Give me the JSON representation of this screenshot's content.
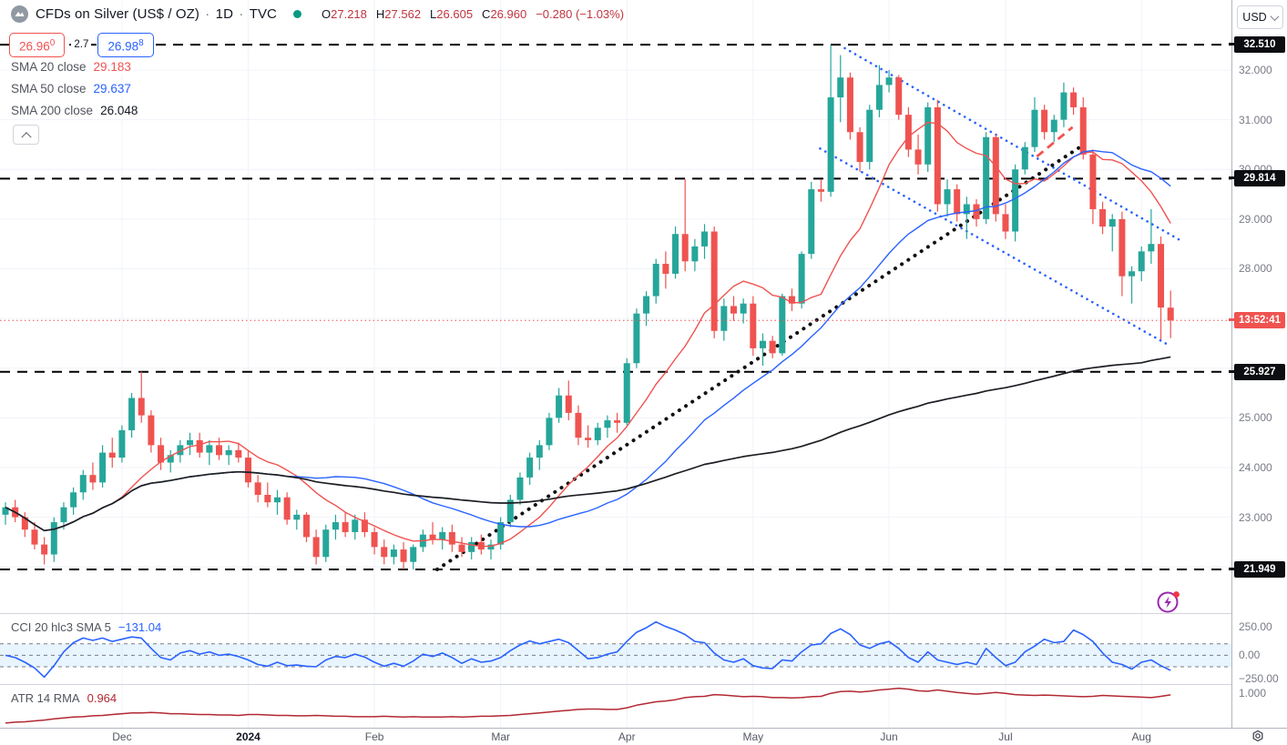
{
  "header": {
    "symbol": "CFDs on Silver (US$ / OZ)",
    "separator": "·",
    "timeframe": "1D",
    "exchange": "TVC",
    "ohlc": {
      "o_prefix": "O",
      "o": "27.218",
      "h_prefix": "H",
      "h": "27.562",
      "l_prefix": "L",
      "l": "26.605",
      "c_prefix": "C",
      "c": "26.960",
      "change": "−0.280 (−1.03%)"
    }
  },
  "quote": {
    "bid": "26.96",
    "bid_sup": "0",
    "spread": "2.7",
    "ask": "26.98",
    "ask_sup": "8"
  },
  "ma_legend": [
    {
      "label": "SMA 20 close",
      "value": "29.183",
      "color": "#ef5350"
    },
    {
      "label": "SMA 50 close",
      "value": "29.637",
      "color": "#2962ff"
    },
    {
      "label": "SMA 200 close",
      "value": "26.048",
      "color": "#131722"
    }
  ],
  "cci_pane": {
    "legend": "CCI 20 hlc3 SMA 5",
    "value": "−131.04",
    "value_color": "#2962ff",
    "ticks": [
      {
        "label": "250.00",
        "v": 250
      },
      {
        "label": "0.00",
        "v": 0
      },
      {
        "label": "−250.00",
        "v": -250
      }
    ]
  },
  "atr_pane": {
    "legend": "ATR 14 RMA",
    "value": "0.964",
    "value_color": "#b22833",
    "ticks": [
      {
        "label": "1.000",
        "v": 1.0
      }
    ]
  },
  "price_axis": {
    "currency": "USD",
    "ticks": [
      "32.000",
      "31.000",
      "30.000",
      "29.000",
      "28.000",
      "25.000",
      "24.000",
      "23.000"
    ],
    "level_badges": [
      {
        "text": "32.510",
        "p": 32.51
      },
      {
        "text": "29.814",
        "p": 29.814
      },
      {
        "text": "25.927",
        "p": 25.927
      },
      {
        "text": "21.949",
        "p": 21.949
      }
    ],
    "countdown": {
      "text": "13:52:41",
      "p": 26.96
    }
  },
  "time_axis": {
    "labels": [
      {
        "text": "Dec",
        "i": 12,
        "year": false
      },
      {
        "text": "2024",
        "i": 25,
        "year": true
      },
      {
        "text": "Feb",
        "i": 38,
        "year": false
      },
      {
        "text": "Mar",
        "i": 51,
        "year": false
      },
      {
        "text": "Apr",
        "i": 64,
        "year": false
      },
      {
        "text": "May",
        "i": 77,
        "year": false
      },
      {
        "text": "Jun",
        "i": 91,
        "year": false
      },
      {
        "text": "Jul",
        "i": 103,
        "year": false
      },
      {
        "text": "Aug",
        "i": 117,
        "year": false
      }
    ]
  },
  "chart_data": {
    "type": "candlestick",
    "title": "CFDs on Silver (US$ / OZ) 1D TVC",
    "x_range": "Nov 2023 – Aug 2024 (daily)",
    "main_ylim": [
      21.07,
      33.41
    ],
    "current_price": 26.96,
    "colors": {
      "up": "#26a69a",
      "down": "#ef5350",
      "sma20": "#ef5350",
      "sma50": "#2962ff",
      "sma200": "#1c1e23",
      "cci": "#2962ff",
      "atr": "#b22833",
      "grid": "#f0f3fa",
      "level": "#000000",
      "channel": "#2962ff"
    },
    "candles": [
      [
        23.05,
        23.3,
        22.85,
        23.2
      ],
      [
        23.2,
        23.35,
        22.9,
        23.0
      ],
      [
        23.0,
        23.1,
        22.6,
        22.75
      ],
      [
        22.75,
        22.9,
        22.35,
        22.45
      ],
      [
        22.45,
        22.6,
        22.05,
        22.25
      ],
      [
        22.25,
        23.0,
        22.1,
        22.9
      ],
      [
        22.9,
        23.3,
        22.75,
        23.2
      ],
      [
        23.2,
        23.6,
        23.05,
        23.5
      ],
      [
        23.5,
        23.95,
        23.35,
        23.85
      ],
      [
        23.85,
        24.1,
        23.55,
        23.7
      ],
      [
        23.7,
        24.45,
        23.6,
        24.3
      ],
      [
        24.3,
        24.6,
        24.0,
        24.2
      ],
      [
        24.2,
        24.85,
        24.1,
        24.75
      ],
      [
        24.75,
        25.5,
        24.6,
        25.4
      ],
      [
        25.4,
        25.93,
        24.9,
        25.05
      ],
      [
        25.05,
        25.15,
        24.3,
        24.45
      ],
      [
        24.45,
        24.6,
        23.95,
        24.1
      ],
      [
        24.1,
        24.35,
        23.9,
        24.25
      ],
      [
        24.25,
        24.55,
        24.1,
        24.45
      ],
      [
        24.45,
        24.7,
        24.25,
        24.55
      ],
      [
        24.55,
        24.7,
        24.2,
        24.3
      ],
      [
        24.3,
        24.55,
        24.05,
        24.45
      ],
      [
        24.45,
        24.6,
        24.15,
        24.25
      ],
      [
        24.25,
        24.45,
        24.05,
        24.35
      ],
      [
        24.35,
        24.5,
        24.1,
        24.2
      ],
      [
        24.2,
        24.35,
        23.6,
        23.7
      ],
      [
        23.7,
        23.85,
        23.3,
        23.45
      ],
      [
        23.45,
        23.7,
        23.2,
        23.3
      ],
      [
        23.3,
        23.55,
        23.05,
        23.4
      ],
      [
        23.4,
        23.5,
        22.85,
        22.95
      ],
      [
        22.95,
        23.15,
        22.75,
        23.05
      ],
      [
        23.05,
        23.1,
        22.5,
        22.6
      ],
      [
        22.6,
        22.75,
        22.05,
        22.2
      ],
      [
        22.2,
        22.85,
        22.1,
        22.75
      ],
      [
        22.75,
        23.05,
        22.55,
        22.9
      ],
      [
        22.9,
        23.1,
        22.6,
        22.7
      ],
      [
        22.7,
        23.05,
        22.55,
        22.95
      ],
      [
        22.95,
        23.1,
        22.6,
        22.7
      ],
      [
        22.7,
        22.8,
        22.25,
        22.4
      ],
      [
        22.4,
        22.55,
        22.05,
        22.2
      ],
      [
        22.2,
        22.45,
        22.05,
        22.35
      ],
      [
        22.35,
        22.5,
        21.95,
        22.1
      ],
      [
        22.1,
        22.45,
        21.95,
        22.4
      ],
      [
        22.4,
        22.75,
        22.3,
        22.65
      ],
      [
        22.65,
        22.9,
        22.45,
        22.55
      ],
      [
        22.55,
        22.8,
        22.35,
        22.7
      ],
      [
        22.7,
        22.85,
        22.3,
        22.45
      ],
      [
        22.45,
        22.6,
        22.2,
        22.3
      ],
      [
        22.3,
        22.6,
        22.15,
        22.5
      ],
      [
        22.5,
        22.65,
        22.25,
        22.35
      ],
      [
        22.35,
        22.55,
        22.15,
        22.45
      ],
      [
        22.45,
        23.0,
        22.35,
        22.9
      ],
      [
        22.9,
        23.45,
        22.8,
        23.35
      ],
      [
        23.35,
        23.9,
        23.25,
        23.8
      ],
      [
        23.8,
        24.3,
        23.65,
        24.2
      ],
      [
        24.2,
        24.55,
        23.95,
        24.45
      ],
      [
        24.45,
        25.1,
        24.35,
        25.0
      ],
      [
        25.0,
        25.6,
        24.9,
        25.45
      ],
      [
        25.45,
        25.75,
        24.95,
        25.1
      ],
      [
        25.1,
        25.25,
        24.45,
        24.6
      ],
      [
        24.6,
        24.85,
        24.4,
        24.55
      ],
      [
        24.55,
        24.9,
        24.45,
        24.8
      ],
      [
        24.8,
        25.05,
        24.6,
        24.95
      ],
      [
        24.95,
        25.1,
        24.7,
        24.9
      ],
      [
        24.9,
        26.2,
        24.85,
        26.1
      ],
      [
        26.1,
        27.2,
        26.0,
        27.1
      ],
      [
        27.1,
        27.55,
        26.85,
        27.45
      ],
      [
        27.45,
        28.2,
        27.3,
        28.1
      ],
      [
        28.1,
        28.35,
        27.6,
        27.9
      ],
      [
        27.9,
        28.85,
        27.8,
        28.7
      ],
      [
        28.7,
        29.8,
        27.95,
        28.15
      ],
      [
        28.15,
        28.6,
        27.95,
        28.45
      ],
      [
        28.45,
        28.9,
        28.2,
        28.75
      ],
      [
        28.75,
        28.85,
        26.6,
        26.75
      ],
      [
        26.75,
        27.4,
        26.55,
        27.25
      ],
      [
        27.25,
        27.45,
        26.95,
        27.1
      ],
      [
        27.1,
        27.4,
        26.9,
        27.3
      ],
      [
        27.3,
        27.45,
        26.25,
        26.4
      ],
      [
        26.4,
        26.7,
        26.05,
        26.55
      ],
      [
        26.55,
        26.65,
        26.2,
        26.3
      ],
      [
        26.3,
        27.5,
        26.25,
        27.45
      ],
      [
        27.45,
        27.6,
        27.15,
        27.3
      ],
      [
        27.3,
        28.35,
        27.2,
        28.3
      ],
      [
        28.3,
        29.75,
        28.2,
        29.6
      ],
      [
        29.6,
        29.8,
        29.35,
        29.55
      ],
      [
        29.55,
        32.5,
        29.45,
        31.45
      ],
      [
        31.45,
        32.3,
        30.95,
        31.85
      ],
      [
        31.85,
        31.95,
        30.6,
        30.75
      ],
      [
        30.75,
        30.85,
        29.95,
        30.15
      ],
      [
        30.15,
        31.3,
        30.0,
        31.2
      ],
      [
        31.2,
        32.1,
        31.05,
        31.7
      ],
      [
        31.7,
        32.0,
        31.55,
        31.85
      ],
      [
        31.85,
        31.9,
        31.0,
        31.1
      ],
      [
        31.1,
        31.25,
        30.25,
        30.4
      ],
      [
        30.4,
        30.7,
        29.9,
        30.1
      ],
      [
        30.1,
        31.35,
        29.95,
        31.25
      ],
      [
        31.25,
        31.4,
        29.15,
        29.3
      ],
      [
        29.3,
        29.8,
        29.05,
        29.6
      ],
      [
        29.6,
        29.7,
        28.95,
        29.1
      ],
      [
        29.1,
        29.45,
        28.6,
        29.3
      ],
      [
        29.3,
        29.4,
        28.85,
        29.0
      ],
      [
        29.0,
        30.75,
        28.9,
        30.65
      ],
      [
        30.65,
        30.7,
        28.95,
        29.1
      ],
      [
        29.1,
        29.3,
        28.6,
        28.75
      ],
      [
        28.75,
        30.1,
        28.55,
        30.0
      ],
      [
        30.0,
        30.55,
        29.9,
        30.45
      ],
      [
        30.45,
        31.45,
        30.35,
        31.2
      ],
      [
        31.2,
        31.3,
        30.6,
        30.75
      ],
      [
        30.75,
        31.1,
        30.55,
        31.0
      ],
      [
        31.0,
        31.75,
        30.85,
        31.55
      ],
      [
        31.55,
        31.65,
        31.1,
        31.25
      ],
      [
        31.25,
        31.45,
        30.2,
        30.3
      ],
      [
        30.3,
        30.4,
        28.9,
        29.2
      ],
      [
        29.2,
        29.35,
        28.7,
        28.85
      ],
      [
        28.85,
        29.1,
        28.35,
        29.0
      ],
      [
        29.0,
        29.15,
        27.45,
        27.85
      ],
      [
        27.85,
        28.05,
        27.3,
        27.95
      ],
      [
        27.95,
        28.45,
        27.75,
        28.35
      ],
      [
        28.35,
        29.2,
        28.1,
        28.5
      ],
      [
        28.5,
        28.65,
        26.58,
        27.22
      ],
      [
        27.218,
        27.562,
        26.605,
        26.96
      ]
    ],
    "sma": [
      {
        "name": "SMA 20",
        "window": 12,
        "color": "#ef5350",
        "width": 1.4
      },
      {
        "name": "SMA 50",
        "window": 30,
        "color": "#2962ff",
        "width": 1.4
      },
      {
        "name": "SMA 200",
        "window": 118,
        "color": "#1c1e23",
        "width": 1.7
      }
    ],
    "levels": [
      32.51,
      29.814,
      25.927,
      21.949
    ],
    "drawings": {
      "trendline": {
        "x1f": 0.355,
        "p1": 21.95,
        "x2f": 0.877,
        "p2": 30.45
      },
      "channel": [
        {
          "x1f": 0.686,
          "p1": 32.44,
          "x2f": 0.958,
          "p2": 28.58
        },
        {
          "x1f": 0.666,
          "p1": 30.42,
          "x2f": 0.95,
          "p2": 26.45
        }
      ],
      "red_segment": {
        "x1f": 0.842,
        "p1": 30.26,
        "x2f": 0.871,
        "p2": 30.85
      }
    },
    "cci": {
      "name": "CCI 20 hlc3 SMA 5",
      "ylim": [
        -250,
        367
      ],
      "band": [
        -100,
        100
      ],
      "last": -131.04,
      "values": [
        0,
        -20,
        -60,
        -110,
        -190,
        -90,
        30,
        110,
        150,
        130,
        150,
        120,
        140,
        160,
        150,
        60,
        -20,
        -40,
        20,
        40,
        10,
        30,
        0,
        10,
        -10,
        -40,
        -80,
        -95,
        -60,
        -90,
        -85,
        -95,
        -100,
        -40,
        -10,
        -20,
        10,
        -15,
        -60,
        -95,
        -70,
        -95,
        -50,
        10,
        -10,
        20,
        -20,
        -70,
        -30,
        -60,
        -50,
        -20,
        40,
        90,
        125,
        100,
        120,
        140,
        110,
        40,
        -30,
        -20,
        10,
        30,
        120,
        200,
        240,
        290,
        250,
        220,
        180,
        120,
        110,
        20,
        -40,
        -60,
        -30,
        -90,
        -110,
        -115,
        -40,
        -50,
        30,
        90,
        100,
        190,
        230,
        180,
        90,
        60,
        100,
        120,
        60,
        -20,
        -60,
        30,
        -40,
        -60,
        -80,
        -60,
        -80,
        60,
        -20,
        -90,
        -60,
        30,
        80,
        140,
        110,
        120,
        220,
        180,
        120,
        20,
        -60,
        -80,
        -120,
        -60,
        -40,
        -90,
        -131
      ]
    },
    "atr": {
      "name": "ATR 14 RMA",
      "ylim": [
        0.19,
        1.219
      ],
      "last": 0.964,
      "values": [
        0.3,
        0.32,
        0.33,
        0.35,
        0.37,
        0.4,
        0.42,
        0.44,
        0.45,
        0.47,
        0.48,
        0.5,
        0.52,
        0.54,
        0.54,
        0.55,
        0.54,
        0.52,
        0.52,
        0.51,
        0.5,
        0.5,
        0.49,
        0.49,
        0.48,
        0.5,
        0.5,
        0.49,
        0.48,
        0.48,
        0.47,
        0.47,
        0.48,
        0.47,
        0.46,
        0.46,
        0.45,
        0.45,
        0.45,
        0.46,
        0.45,
        0.44,
        0.45,
        0.44,
        0.44,
        0.44,
        0.45,
        0.44,
        0.45,
        0.46,
        0.46,
        0.47,
        0.48,
        0.5,
        0.52,
        0.54,
        0.56,
        0.58,
        0.6,
        0.62,
        0.63,
        0.63,
        0.62,
        0.62,
        0.66,
        0.72,
        0.76,
        0.8,
        0.82,
        0.85,
        0.9,
        0.92,
        0.93,
        0.97,
        0.96,
        0.94,
        0.92,
        0.93,
        0.92,
        0.9,
        0.9,
        0.89,
        0.9,
        0.92,
        0.93,
        1.0,
        1.04,
        1.05,
        1.03,
        1.05,
        1.08,
        1.1,
        1.12,
        1.1,
        1.06,
        1.05,
        1.08,
        1.05,
        1.02,
        1.0,
        0.98,
        1.0,
        1.02,
        1.0,
        0.97,
        0.96,
        0.95,
        0.96,
        0.95,
        0.94,
        0.93,
        0.92,
        0.93,
        0.95,
        0.94,
        0.93,
        0.92,
        0.91,
        0.9,
        0.93,
        0.964
      ]
    }
  }
}
